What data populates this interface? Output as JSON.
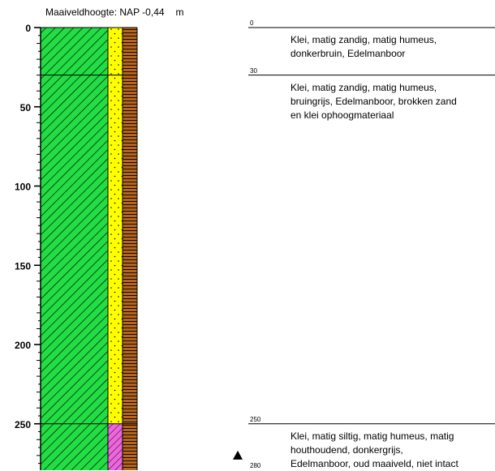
{
  "header": {
    "label": "Maaiveldhoogte: NAP -0,44",
    "unit": "m"
  },
  "axis": {
    "ticks_major": [
      "0",
      "50",
      "100",
      "150",
      "200",
      "250"
    ]
  },
  "layers": [
    {
      "top": 0,
      "bottom": 30,
      "top_label": "0",
      "bottom_label": "30",
      "main": "hatched-green",
      "sub": "dotted-yellow",
      "organic": "brown",
      "description": "Klei, matig zandig, matig humeus,\ndonkerbruin, Edelmanboor"
    },
    {
      "top": 30,
      "bottom": 250,
      "top_label": "30",
      "bottom_label": "250",
      "main": "hatched-green",
      "sub": "dotted-yellow",
      "organic": "brown",
      "description": "Klei, matig zandig, matig humeus,\nbruingrijs, Edelmanboor, brokken zand\nen klei ophoogmateriaal"
    },
    {
      "top": 250,
      "bottom": 280,
      "top_label": "250",
      "bottom_label": "280",
      "main": "hatched-green",
      "sub": "hatched-pink",
      "organic": "brown",
      "description": "Klei, matig siltig, matig humeus, matig\nhouthoudend, donkergrijs,\nEdelmanboor, oud maaiveld, niet intact"
    }
  ],
  "marker": {
    "icon": "triangle-marker-icon",
    "depth": 270
  },
  "colors": {
    "green": "#22dd44",
    "yellow": "#ffff00",
    "brown": "#b5651d",
    "pink": "#ee66dd"
  }
}
